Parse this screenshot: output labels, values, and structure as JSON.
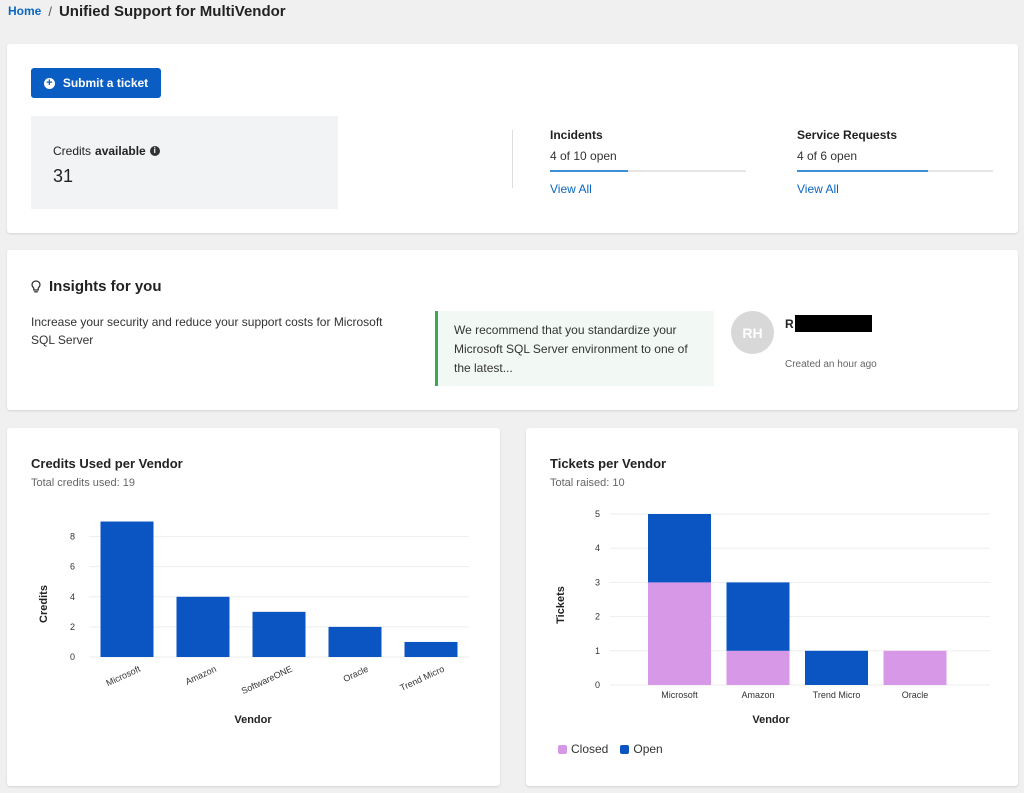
{
  "breadcrumb": {
    "home": "Home",
    "separator": "/",
    "title": "Unified Support for MultiVendor"
  },
  "top": {
    "submit_label": "Submit a ticket",
    "credits_label_pre": "Credits",
    "credits_label_bold": "available",
    "credits_value": "31",
    "incidents": {
      "title": "Incidents",
      "status": "4 of 10 open",
      "link": "View All",
      "progress": 0.4
    },
    "service_requests": {
      "title": "Service Requests",
      "status": "4 of 6 open",
      "link": "View All",
      "progress": 0.67
    }
  },
  "insights": {
    "title": "Insights for you",
    "text": "Increase your security and reduce your support costs for Microsoft SQL Server",
    "recommendation": "We recommend that you standardize your Microsoft SQL Server environment to one of the latest...",
    "avatar_initials": "RH",
    "user_initial": "R",
    "created": "Created an hour ago"
  },
  "colors": {
    "primary": "#0a5dc2",
    "bar_blue": "#0b55c2",
    "closed": "#d898e8",
    "success_border": "#3aa857"
  },
  "chart_data": [
    {
      "type": "bar",
      "title": "Credits Used per Vendor",
      "subtitle": "Total credits used: 19",
      "xlabel": "Vendor",
      "ylabel": "Credits",
      "categories": [
        "Microsoft",
        "Amazon",
        "SoftwareONE",
        "Oracle",
        "Trend Micro"
      ],
      "values": [
        9,
        4,
        3,
        2,
        1
      ],
      "yticks": [
        0,
        2,
        4,
        6,
        8
      ],
      "ylim": [
        0,
        9.5
      ],
      "grid": true
    },
    {
      "type": "bar",
      "stacked": true,
      "title": "Tickets per Vendor",
      "subtitle": "Total raised: 10",
      "xlabel": "Vendor",
      "ylabel": "Tickets",
      "categories": [
        "Microsoft",
        "Amazon",
        "Trend Micro",
        "Oracle"
      ],
      "series": [
        {
          "name": "Closed",
          "values": [
            3,
            1,
            0,
            1
          ]
        },
        {
          "name": "Open",
          "values": [
            2,
            2,
            1,
            0
          ]
        }
      ],
      "yticks": [
        0,
        1,
        2,
        3,
        4,
        5
      ],
      "ylim": [
        0,
        5
      ],
      "legend": "bottom-left",
      "grid": true
    }
  ]
}
